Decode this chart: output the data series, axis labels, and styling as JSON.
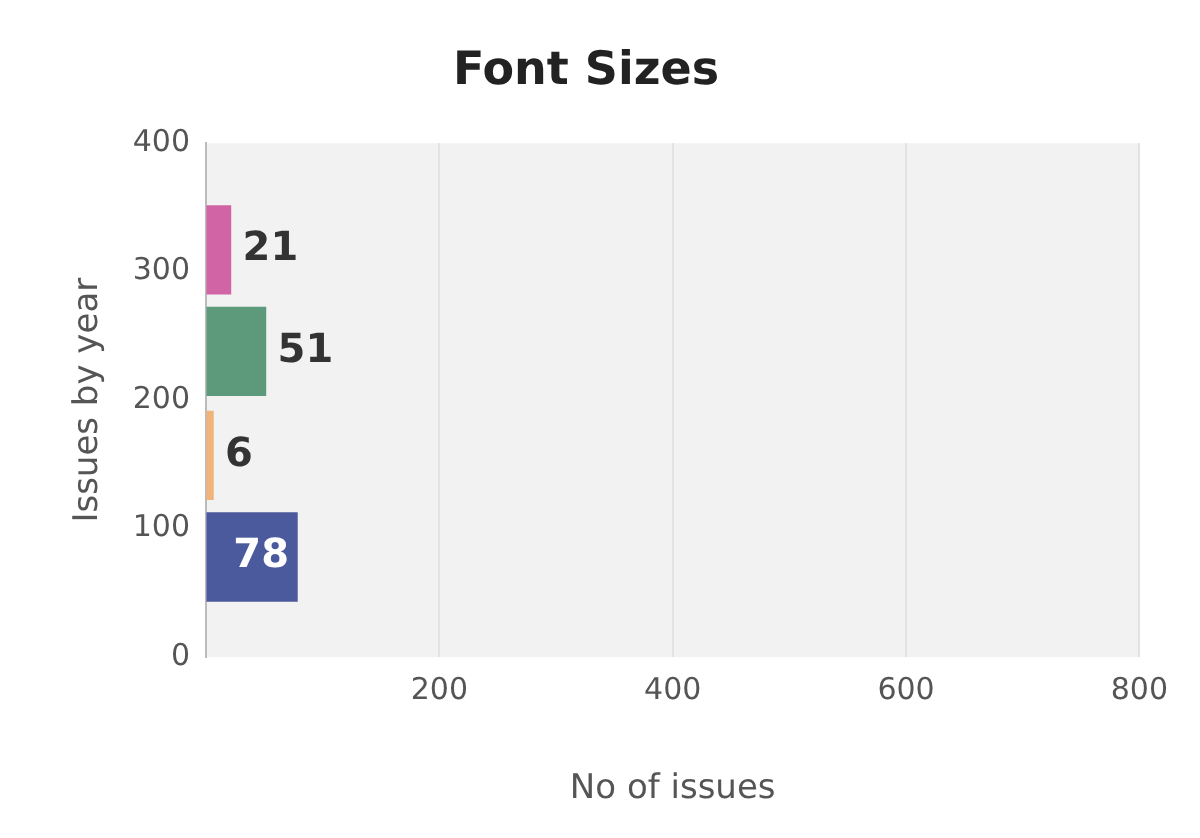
{
  "chart_data": {
    "type": "bar",
    "orientation": "horizontal",
    "title": "Font Sizes",
    "xlabel": "No of issues",
    "ylabel": "Issues by year",
    "x": [
      317,
      238,
      157,
      78
    ],
    "values": [
      21,
      51,
      6,
      78
    ],
    "colors": [
      "#d064a4",
      "#5d9a7c",
      "#f0b37a",
      "#4b5a9c"
    ],
    "data_labels": true,
    "xlim": [
      0,
      800
    ],
    "xticks": [
      {
        "value": 0,
        "label": null
      },
      200,
      400,
      600,
      800
    ],
    "ylim": [
      0,
      400
    ],
    "yticks": [
      0,
      100,
      200,
      300,
      400
    ],
    "grid": "x",
    "legend": false
  }
}
